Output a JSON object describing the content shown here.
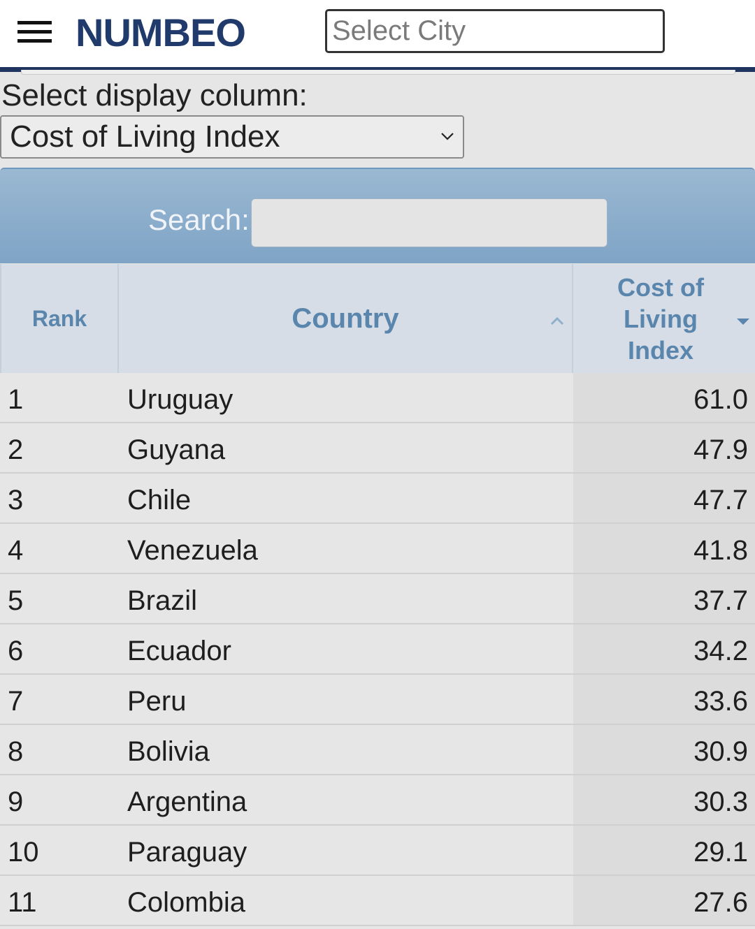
{
  "header": {
    "logo_text": "NUMBEO",
    "city_search_placeholder": "Select City"
  },
  "controls": {
    "display_column_label": "Select display column:",
    "display_column_value": "Cost of Living Index",
    "search_label": "Search:",
    "search_value": ""
  },
  "table": {
    "columns": {
      "rank": "Rank",
      "country": "Country",
      "index": "Cost of Living Index"
    },
    "rows": [
      {
        "rank": "1",
        "country": "Uruguay",
        "value": "61.0"
      },
      {
        "rank": "2",
        "country": "Guyana",
        "value": "47.9"
      },
      {
        "rank": "3",
        "country": "Chile",
        "value": "47.7"
      },
      {
        "rank": "4",
        "country": "Venezuela",
        "value": "41.8"
      },
      {
        "rank": "5",
        "country": "Brazil",
        "value": "37.7"
      },
      {
        "rank": "6",
        "country": "Ecuador",
        "value": "34.2"
      },
      {
        "rank": "7",
        "country": "Peru",
        "value": "33.6"
      },
      {
        "rank": "8",
        "country": "Bolivia",
        "value": "30.9"
      },
      {
        "rank": "9",
        "country": "Argentina",
        "value": "30.3"
      },
      {
        "rank": "10",
        "country": "Paraguay",
        "value": "29.1"
      },
      {
        "rank": "11",
        "country": "Colombia",
        "value": "27.6"
      }
    ]
  },
  "colors": {
    "brand": "#1f3a6b",
    "header_text": "#5a86ad",
    "search_bar": "#8aaccb"
  },
  "icons": {
    "menu": "hamburger-menu-icon",
    "dropdown": "chevron-down-icon",
    "sort_asc": "sort-ascending-icon",
    "sort_desc": "sort-descending-icon"
  }
}
